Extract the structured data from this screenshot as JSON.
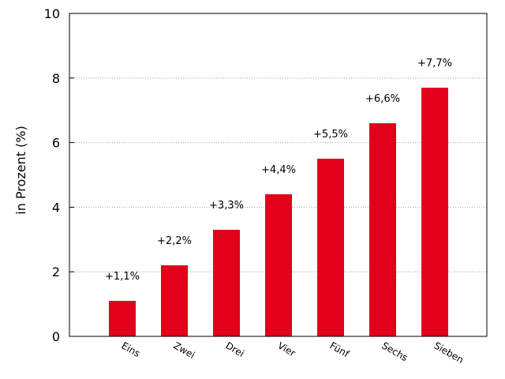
{
  "chart_data": {
    "type": "bar",
    "categories": [
      "Eins",
      "Zwei",
      "Drei",
      "Vier",
      "Fünf",
      "Sechs",
      "Sieben"
    ],
    "values": [
      1.1,
      2.2,
      3.3,
      4.4,
      5.5,
      6.6,
      7.7
    ],
    "data_labels": [
      "+1,1%",
      "+2,2%",
      "+3,3%",
      "+4,4%",
      "+5,5%",
      "+6,6%",
      "+7,7%"
    ],
    "title": "",
    "xlabel": "",
    "ylabel": "in Prozent (%)",
    "ylim": [
      0,
      10
    ],
    "yticks": [
      0,
      2,
      4,
      6,
      8,
      10
    ],
    "ytick_labels": [
      "0",
      "2",
      "4",
      "6",
      "8",
      "10"
    ],
    "grid": "y-dotted",
    "bar_color": "#e2001a"
  }
}
